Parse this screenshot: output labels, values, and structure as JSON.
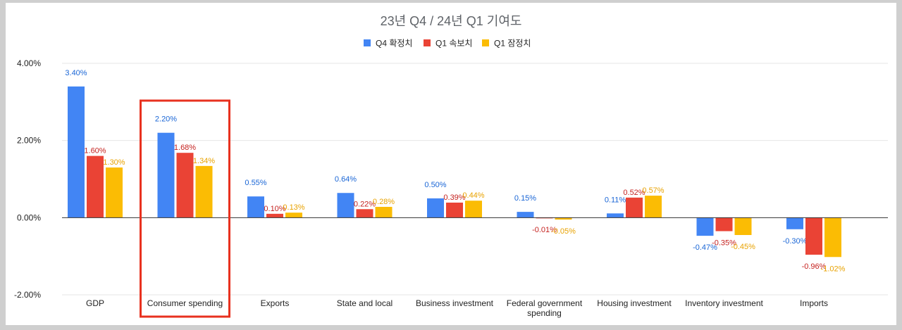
{
  "chart_data": {
    "type": "bar",
    "title": "23년 Q4 / 24년 Q1 기여도",
    "categories": [
      "GDP",
      "Consumer spending",
      "Exports",
      "State and local",
      "Business investment",
      "Federal government spending",
      "Housing investment",
      "Inventory investment",
      "Imports"
    ],
    "category_lines": [
      [
        "GDP"
      ],
      [
        "Consumer spending"
      ],
      [
        "Exports"
      ],
      [
        "State and local"
      ],
      [
        "Business investment"
      ],
      [
        "Federal government",
        "spending"
      ],
      [
        "Housing investment"
      ],
      [
        "Inventory investment"
      ],
      [
        "Imports"
      ]
    ],
    "series": [
      {
        "name": "Q4 확정치",
        "color": "#4285f4",
        "label_color": "#1a66d6",
        "values": [
          3.4,
          2.2,
          0.55,
          0.64,
          0.5,
          0.15,
          0.11,
          -0.47,
          -0.3
        ]
      },
      {
        "name": "Q1 속보치",
        "color": "#ea4335",
        "label_color": "#c5221f",
        "values": [
          1.6,
          1.68,
          0.1,
          0.22,
          0.39,
          -0.01,
          0.52,
          -0.35,
          -0.96
        ]
      },
      {
        "name": "Q1 잠정치",
        "color": "#fbbc04",
        "label_color": "#e8a200",
        "values": [
          1.3,
          1.34,
          0.13,
          0.28,
          0.44,
          -0.05,
          0.57,
          -0.45,
          -1.02
        ]
      }
    ],
    "data_labels": [
      [
        "3.40%",
        "2.20%",
        "0.55%",
        "0.64%",
        "0.50%",
        "0.15%",
        "0.11%",
        "-0.47%",
        "-0.30%"
      ],
      [
        "1.60%",
        "1.68%",
        "0.10%",
        "0.22%",
        "0.39%",
        "-0.01%",
        "0.52%",
        "-0.35%",
        "-0.96%"
      ],
      [
        "1.30%",
        "1.34%",
        "0.13%",
        "0.28%",
        "0.44%",
        "-0.05%",
        "0.57%",
        "-0.45%",
        "-1.02%"
      ]
    ],
    "ylim": [
      -2,
      4
    ],
    "yticks": [
      4,
      2,
      0,
      -2
    ],
    "ytick_labels": [
      "4.00%",
      "2.00%",
      "0.00%",
      "-2.00%"
    ],
    "legend_position": "top-center",
    "highlighted_category": "Consumer spending",
    "highlight_color": "#e8311f"
  }
}
